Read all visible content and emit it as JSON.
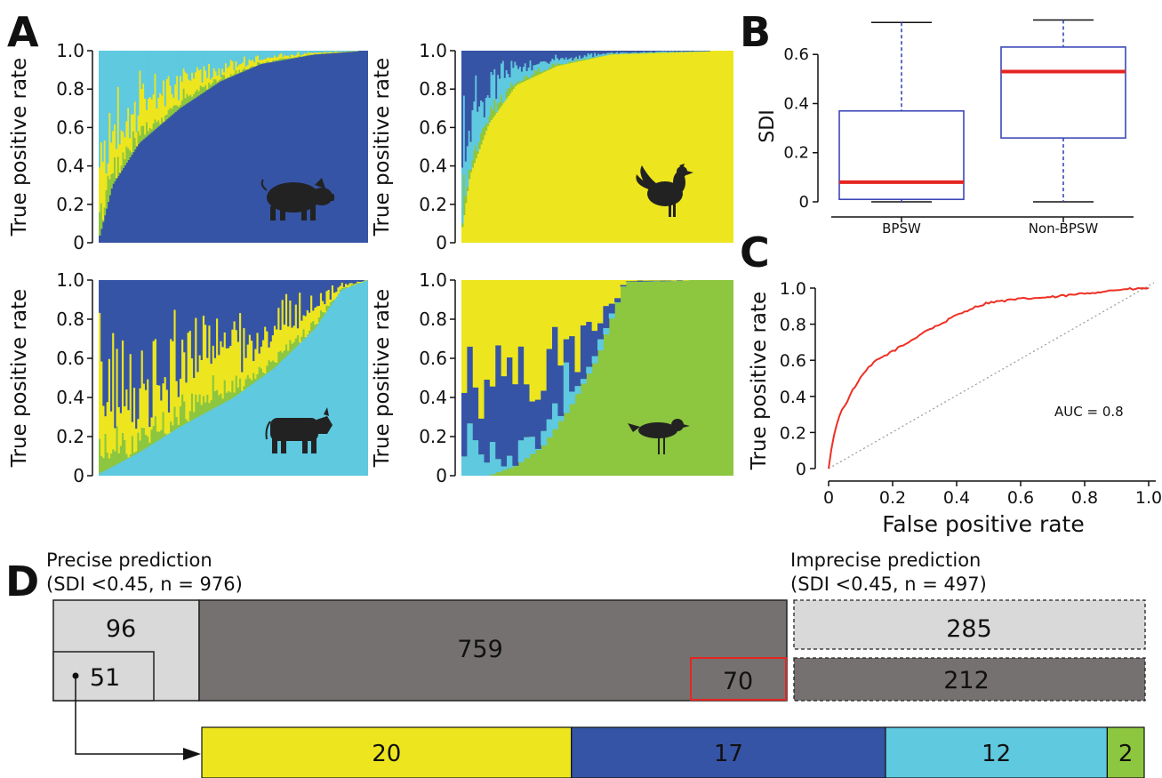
{
  "panel_labels": {
    "a": "A",
    "b": "B",
    "c": "C",
    "d": "D"
  },
  "colors": {
    "pig": "#3654a5",
    "chicken": "#ede61e",
    "cattle": "#5ec9df",
    "wild_bird": "#8dc63f",
    "box_blue": "#3b48b8",
    "median_red": "#e52521",
    "roc_red": "#ef2f24",
    "light_gray": "#d9d9d9",
    "dark_gray": "#767171"
  },
  "icons": [
    "pig-icon",
    "rooster-icon",
    "cow-icon",
    "bird-icon"
  ],
  "chart_data": [
    {
      "type": "area",
      "panel": "A-pig",
      "ylabel": "True positive rate",
      "yticks": [
        "0",
        "0.2",
        "0.4",
        "0.6",
        "0.8",
        "1.0"
      ],
      "ylim": [
        0,
        1
      ],
      "series_colors": [
        "#3654a5",
        "#5ec9df",
        "#ede61e",
        "#8dc63f"
      ],
      "base_curve": {
        "x": [
          0,
          0.05,
          0.15,
          0.3,
          0.45,
          0.6,
          0.8,
          1.0
        ],
        "y": [
          0.02,
          0.3,
          0.52,
          0.7,
          0.84,
          0.93,
          0.98,
          1.0
        ]
      }
    },
    {
      "type": "area",
      "panel": "A-chicken",
      "ylabel": "True positive rate",
      "yticks": [
        "0",
        "0.2",
        "0.4",
        "0.6",
        "0.8",
        "1.0"
      ],
      "ylim": [
        0,
        1
      ],
      "series_colors": [
        "#ede61e",
        "#3654a5",
        "#5ec9df",
        "#8dc63f"
      ],
      "base_curve": {
        "x": [
          0,
          0.03,
          0.1,
          0.2,
          0.35,
          0.55,
          1.0
        ],
        "y": [
          0.05,
          0.35,
          0.62,
          0.82,
          0.92,
          0.98,
          1.0
        ]
      }
    },
    {
      "type": "area",
      "panel": "A-cattle",
      "ylabel": "True positive rate",
      "yticks": [
        "0",
        "0.2",
        "0.4",
        "0.6",
        "0.8",
        "1.0"
      ],
      "ylim": [
        0,
        1
      ],
      "series_colors": [
        "#5ec9df",
        "#3654a5",
        "#ede61e",
        "#8dc63f"
      ],
      "base_curve": {
        "x": [
          0,
          0.15,
          0.3,
          0.5,
          0.65,
          0.8,
          0.9,
          1.0
        ],
        "y": [
          0.01,
          0.12,
          0.25,
          0.4,
          0.55,
          0.75,
          0.95,
          1.0
        ]
      }
    },
    {
      "type": "area",
      "panel": "A-wild-bird",
      "ylabel": "True positive rate",
      "yticks": [
        "0",
        "0.2",
        "0.4",
        "0.6",
        "0.8",
        "1.0"
      ],
      "ylim": [
        0,
        1
      ],
      "series_colors": [
        "#8dc63f",
        "#ede61e",
        "#3654a5",
        "#5ec9df"
      ],
      "base_curve": {
        "x": [
          0,
          0.1,
          0.2,
          0.3,
          0.4,
          0.5,
          0.6,
          1.0
        ],
        "y": [
          0.0,
          0.0,
          0.05,
          0.15,
          0.35,
          0.6,
          0.99,
          1.0
        ]
      }
    },
    {
      "type": "box",
      "panel": "B",
      "ylabel": "SDI",
      "categories": [
        "BPSW",
        "Non-BPSW"
      ],
      "yticks": [
        "0",
        "0.2",
        "0.4",
        "0.6"
      ],
      "ylim": [
        0,
        0.76
      ],
      "boxes": [
        {
          "min": 0.0,
          "q1": 0.01,
          "median": 0.08,
          "q3": 0.37,
          "max": 0.73
        },
        {
          "min": 0.0,
          "q1": 0.26,
          "median": 0.53,
          "q3": 0.63,
          "max": 0.74
        }
      ]
    },
    {
      "type": "line",
      "panel": "C",
      "xlabel": "False positive rate",
      "ylabel": "True positive rate",
      "xticks": [
        "0",
        "0.2",
        "0.4",
        "0.6",
        "0.8",
        "1.0"
      ],
      "yticks": [
        "0",
        "0.2",
        "0.4",
        "0.6",
        "0.8",
        "1.0"
      ],
      "xlim": [
        0,
        1
      ],
      "ylim": [
        0,
        1
      ],
      "annotation": "AUC = 0.8",
      "x": [
        0,
        0.01,
        0.02,
        0.04,
        0.06,
        0.08,
        0.1,
        0.12,
        0.15,
        0.2,
        0.25,
        0.3,
        0.35,
        0.4,
        0.45,
        0.5,
        0.6,
        0.7,
        0.8,
        0.9,
        1.0
      ],
      "y": [
        0,
        0.12,
        0.22,
        0.32,
        0.38,
        0.45,
        0.5,
        0.55,
        0.6,
        0.65,
        0.7,
        0.76,
        0.8,
        0.85,
        0.89,
        0.92,
        0.94,
        0.95,
        0.97,
        0.99,
        1.0
      ]
    }
  ],
  "panel_d": {
    "precise_title": "Precise prediction",
    "precise_subtitle": "(SDI <0.45, n = 976)",
    "imprecise_title": "Imprecise prediction",
    "imprecise_subtitle": "(SDI <0.45, n = 497)",
    "precise_light": "96",
    "precise_sub": "51",
    "precise_dark": "759",
    "precise_dark_highlight": "70",
    "imprecise_light": "285",
    "imprecise_dark": "212",
    "breakdown": [
      {
        "label": "20",
        "value": 20,
        "color": "#ede61e"
      },
      {
        "label": "17",
        "value": 17,
        "color": "#3654a5"
      },
      {
        "label": "12",
        "value": 12,
        "color": "#5ec9df"
      },
      {
        "label": "2",
        "value": 2,
        "color": "#8dc63f"
      }
    ]
  }
}
